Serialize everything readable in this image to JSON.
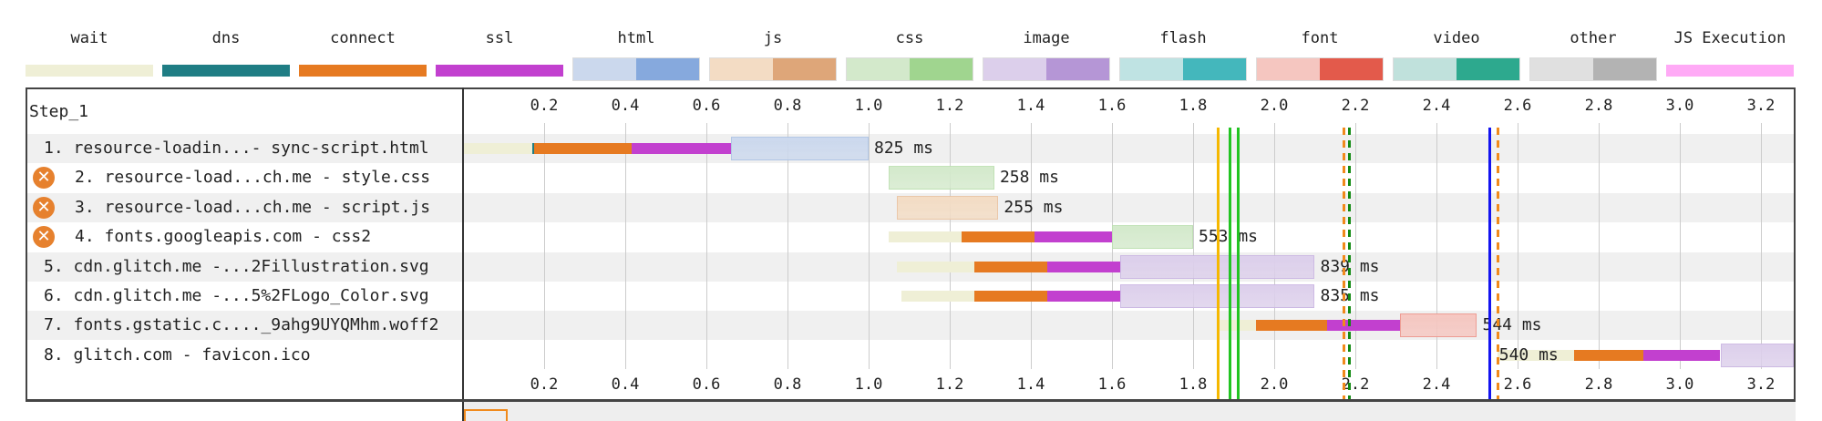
{
  "legend": [
    {
      "label": "wait",
      "colors": [
        "#efefd6"
      ],
      "thin": true
    },
    {
      "label": "dns",
      "colors": [
        "#1f7d84"
      ],
      "thin": true
    },
    {
      "label": "connect",
      "colors": [
        "#e67a21"
      ],
      "thin": true
    },
    {
      "label": "ssl",
      "colors": [
        "#c240cf"
      ],
      "thin": true
    },
    {
      "label": "html",
      "colors": [
        "#cbd8ed",
        "#86a9dd"
      ]
    },
    {
      "label": "js",
      "colors": [
        "#f3dcc4",
        "#dea679"
      ]
    },
    {
      "label": "css",
      "colors": [
        "#d3e9cb",
        "#a0d58f"
      ]
    },
    {
      "label": "image",
      "colors": [
        "#dccfeb",
        "#b596d6"
      ]
    },
    {
      "label": "flash",
      "colors": [
        "#bfe3e3",
        "#44b7bc"
      ]
    },
    {
      "label": "font",
      "colors": [
        "#f5c6c0",
        "#e35a4b"
      ]
    },
    {
      "label": "video",
      "colors": [
        "#c0e1dc",
        "#2da98e"
      ]
    },
    {
      "label": "other",
      "colors": [
        "#e0e0e0",
        "#b3b3b3"
      ]
    },
    {
      "label": "JS Execution",
      "colors": [
        "#ffaaf6"
      ],
      "thin": true
    }
  ],
  "step_label": "Step_1",
  "axis": {
    "ticks": [
      "0.2",
      "0.4",
      "0.6",
      "0.8",
      "1.0",
      "1.2",
      "1.4",
      "1.6",
      "1.8",
      "2.0",
      "2.2",
      "2.4",
      "2.6",
      "2.8",
      "3.0",
      "3.2"
    ],
    "max_seconds": 3.28
  },
  "requests": [
    {
      "label": "1. resource-loadin...- sync-script.html",
      "error": false,
      "duration": "825 ms",
      "type": "html",
      "wait": [
        0,
        0.17
      ],
      "dns": [
        0.17,
        0.175
      ],
      "connect": [
        0.175,
        0.415
      ],
      "ssl": [
        0.415,
        0.66
      ],
      "content": [
        0.66,
        1.0
      ]
    },
    {
      "label": "2. resource-load...ch.me - style.css",
      "error": true,
      "duration": "258 ms",
      "type": "css",
      "content": [
        1.05,
        1.31
      ]
    },
    {
      "label": "3. resource-load...ch.me - script.js",
      "error": true,
      "duration": "255 ms",
      "type": "js",
      "content": [
        1.07,
        1.32
      ]
    },
    {
      "label": "4. fonts.googleapis.com - css2",
      "error": true,
      "duration": "553 ms",
      "type": "css",
      "wait": [
        1.05,
        1.23
      ],
      "connect": [
        1.23,
        1.41
      ],
      "ssl": [
        1.41,
        1.6
      ],
      "content": [
        1.6,
        1.8
      ]
    },
    {
      "label": "5. cdn.glitch.me -...2Fillustration.svg",
      "error": false,
      "duration": "839 ms",
      "type": "image",
      "wait": [
        1.07,
        1.26
      ],
      "connect": [
        1.26,
        1.44
      ],
      "ssl": [
        1.44,
        1.62
      ],
      "content": [
        1.62,
        2.1
      ]
    },
    {
      "label": "6. cdn.glitch.me -...5%2FLogo_Color.svg",
      "error": false,
      "duration": "835 ms",
      "type": "image",
      "wait": [
        1.08,
        1.26
      ],
      "connect": [
        1.26,
        1.44
      ],
      "ssl": [
        1.44,
        1.62
      ],
      "content": [
        1.62,
        2.1
      ]
    },
    {
      "label": "7. fonts.gstatic.c...._9ahg9UYQMhm.woff2",
      "error": false,
      "duration": "544 ms",
      "type": "font",
      "wait": [
        1.86,
        1.955
      ],
      "connect": [
        1.955,
        2.13
      ],
      "ssl": [
        2.13,
        2.31
      ],
      "content": [
        2.31,
        2.5
      ]
    },
    {
      "label": "8. glitch.com - favicon.ico",
      "error": false,
      "duration": "540 ms",
      "duration_before": true,
      "type": "image",
      "wait": [
        2.55,
        2.74
      ],
      "connect": [
        2.74,
        2.91
      ],
      "ssl": [
        2.91,
        3.1
      ],
      "content": [
        3.1,
        3.28
      ]
    }
  ],
  "markers": [
    {
      "time": 1.86,
      "color": "#f5b800",
      "dashed": false
    },
    {
      "time": 1.89,
      "color": "#22c422",
      "dashed": false
    },
    {
      "time": 1.91,
      "color": "#22c422",
      "dashed": false
    },
    {
      "time": 2.17,
      "color": "#f08a1c",
      "dashed": true
    },
    {
      "time": 2.185,
      "color": "#138a13",
      "dashed": true
    },
    {
      "time": 2.53,
      "color": "#1414f0",
      "dashed": false
    },
    {
      "time": 2.55,
      "color": "#f08a1c",
      "dashed": true
    }
  ],
  "error_icon": "x-circle-icon"
}
